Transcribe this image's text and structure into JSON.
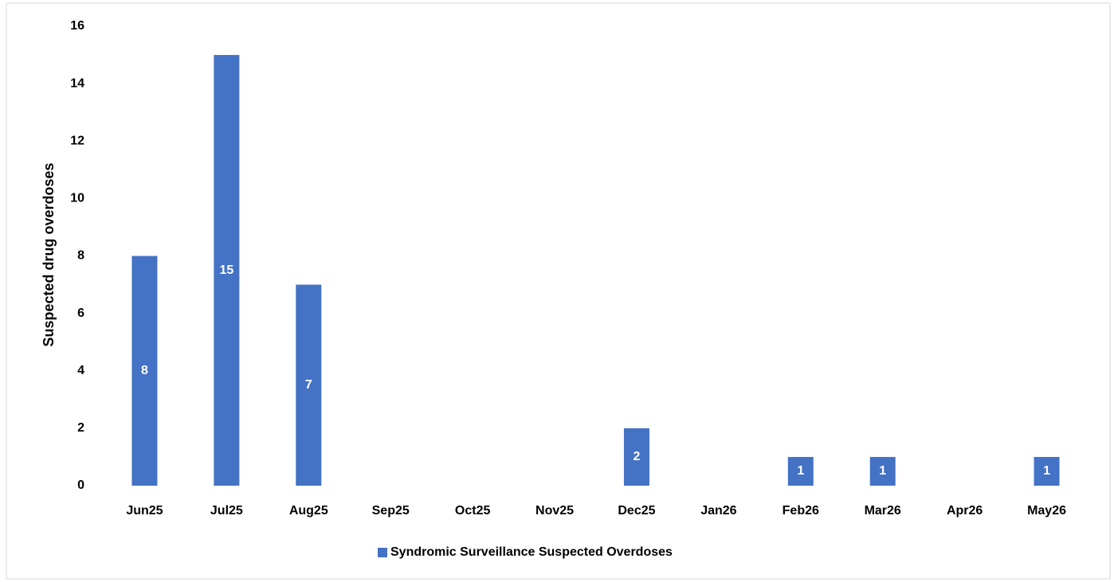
{
  "chart_data": {
    "type": "bar",
    "y_label": "Suspected drug overdoses",
    "categories": [
      "Jun25",
      "Jul25",
      "Aug25",
      "Sep25",
      "Oct25",
      "Nov25",
      "Dec25",
      "Jan26",
      "Feb26",
      "Mar26",
      "Apr26",
      "May26"
    ],
    "series": [
      {
        "name": "Syndromic Surveillance Suspected Overdoses",
        "color": "#4472c4",
        "values": [
          8,
          15,
          7,
          0,
          0,
          0,
          2,
          0,
          1,
          1,
          0,
          1
        ]
      }
    ],
    "ylim": [
      0,
      16
    ],
    "yticks": [
      0,
      2,
      4,
      6,
      8,
      10,
      12,
      14,
      16
    ],
    "grid": false,
    "legend": "bottom"
  }
}
